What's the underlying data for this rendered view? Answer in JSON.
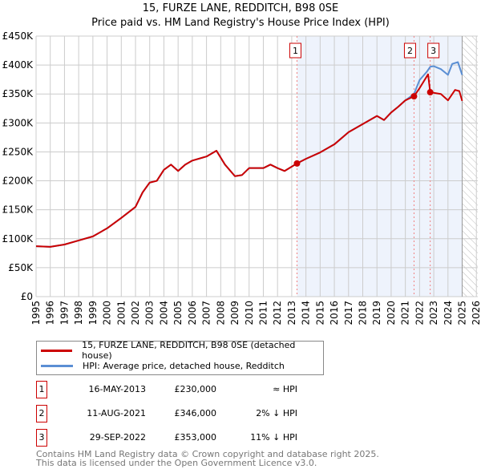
{
  "chart_data": {
    "type": "line",
    "title": "15, FURZE LANE, REDDITCH, B98 0SE",
    "subtitle": "Price paid vs. HM Land Registry's House Price Index (HPI)",
    "xlim": [
      1995,
      2026.1
    ],
    "ylim": [
      0,
      450000
    ],
    "x_ticks": [
      "1995",
      "1996",
      "1997",
      "1998",
      "1999",
      "2000",
      "2001",
      "2002",
      "2003",
      "2004",
      "2005",
      "2006",
      "2007",
      "2008",
      "2009",
      "2010",
      "2011",
      "2012",
      "2013",
      "2014",
      "2015",
      "2016",
      "2017",
      "2018",
      "2019",
      "2020",
      "2021",
      "2022",
      "2023",
      "2024",
      "2025",
      "2026"
    ],
    "y_ticks": [
      {
        "v": 0,
        "l": "£0"
      },
      {
        "v": 50000,
        "l": "£50K"
      },
      {
        "v": 100000,
        "l": "£100K"
      },
      {
        "v": 150000,
        "l": "£150K"
      },
      {
        "v": 200000,
        "l": "£200K"
      },
      {
        "v": 250000,
        "l": "£250K"
      },
      {
        "v": 300000,
        "l": "£300K"
      },
      {
        "v": 350000,
        "l": "£350K"
      },
      {
        "v": 400000,
        "l": "£400K"
      },
      {
        "v": 450000,
        "l": "£450K"
      }
    ],
    "grid": true,
    "shaded_from": 2013.37,
    "hatched_from": 2025.0,
    "series": [
      {
        "name": "15, FURZE LANE, REDDITCH, B98 0SE (detached house)",
        "color": "#cc0000",
        "x": [
          1995,
          1996,
          1997,
          1998,
          1999,
          2000,
          2001,
          2002,
          2002.5,
          2003,
          2003.5,
          2004,
          2004.5,
          2005,
          2005.5,
          2006,
          2007,
          2007.7,
          2008.3,
          2009,
          2009.5,
          2010,
          2011,
          2011.5,
          2012,
          2012.5,
          2013.37,
          2014,
          2015,
          2016,
          2017,
          2018,
          2019,
          2019.5,
          2020,
          2020.5,
          2021,
          2021.61,
          2022,
          2022.6,
          2022.75,
          2023.5,
          2024,
          2024.5,
          2024.8,
          2025.0
        ],
        "y": [
          87000,
          86000,
          90000,
          97000,
          104000,
          118000,
          136000,
          155000,
          180000,
          197000,
          200000,
          219000,
          228000,
          217000,
          228000,
          235000,
          242000,
          252000,
          228000,
          208000,
          210000,
          222000,
          222000,
          228000,
          222000,
          217000,
          230000,
          238000,
          249000,
          263000,
          284000,
          298000,
          312000,
          305000,
          318000,
          328000,
          339000,
          346000,
          360000,
          384000,
          353000,
          350000,
          339000,
          357000,
          355000,
          338000
        ]
      },
      {
        "name": "HPI: Average price, detached house, Redditch",
        "color": "#5b8fd4",
        "x": [
          1995,
          1996,
          1997,
          1998,
          1999,
          2000,
          2001,
          2002,
          2002.5,
          2003,
          2003.5,
          2004,
          2004.5,
          2005,
          2005.5,
          2006,
          2007,
          2007.7,
          2008.3,
          2009,
          2009.5,
          2010,
          2011,
          2011.5,
          2012,
          2012.5,
          2013.37,
          2014,
          2015,
          2016,
          2017,
          2018,
          2019,
          2019.5,
          2020,
          2020.5,
          2021,
          2021.61,
          2022,
          2022.5,
          2022.75,
          2023,
          2023.5,
          2024,
          2024.3,
          2024.7,
          2025.0
        ],
        "y": [
          87000,
          86000,
          90000,
          97000,
          104000,
          118000,
          136000,
          155000,
          180000,
          197000,
          200000,
          219000,
          228000,
          217000,
          228000,
          235000,
          242000,
          252000,
          228000,
          208000,
          210000,
          222000,
          222000,
          228000,
          222000,
          217000,
          230000,
          238000,
          249000,
          263000,
          284000,
          298000,
          312000,
          305000,
          318000,
          328000,
          339000,
          350000,
          374000,
          388000,
          397000,
          398000,
          393000,
          383000,
          402000,
          405000,
          383000
        ]
      }
    ],
    "sales": [
      {
        "label": "1",
        "x": 2013.37,
        "y": 230000
      },
      {
        "label": "2",
        "x": 2021.61,
        "y": 346000
      },
      {
        "label": "3",
        "x": 2022.75,
        "y": 353000
      }
    ]
  },
  "table": [
    {
      "num": "1",
      "date": "16-MAY-2013",
      "price": "£230,000",
      "rel": "≈ HPI"
    },
    {
      "num": "2",
      "date": "11-AUG-2021",
      "price": "£346,000",
      "rel": "2% ↓ HPI"
    },
    {
      "num": "3",
      "date": "29-SEP-2022",
      "price": "£353,000",
      "rel": "11% ↓ HPI"
    }
  ],
  "footer": {
    "line1": "Contains HM Land Registry data © Crown copyright and database right 2025.",
    "line2": "This data is licensed under the Open Government Licence v3.0."
  }
}
